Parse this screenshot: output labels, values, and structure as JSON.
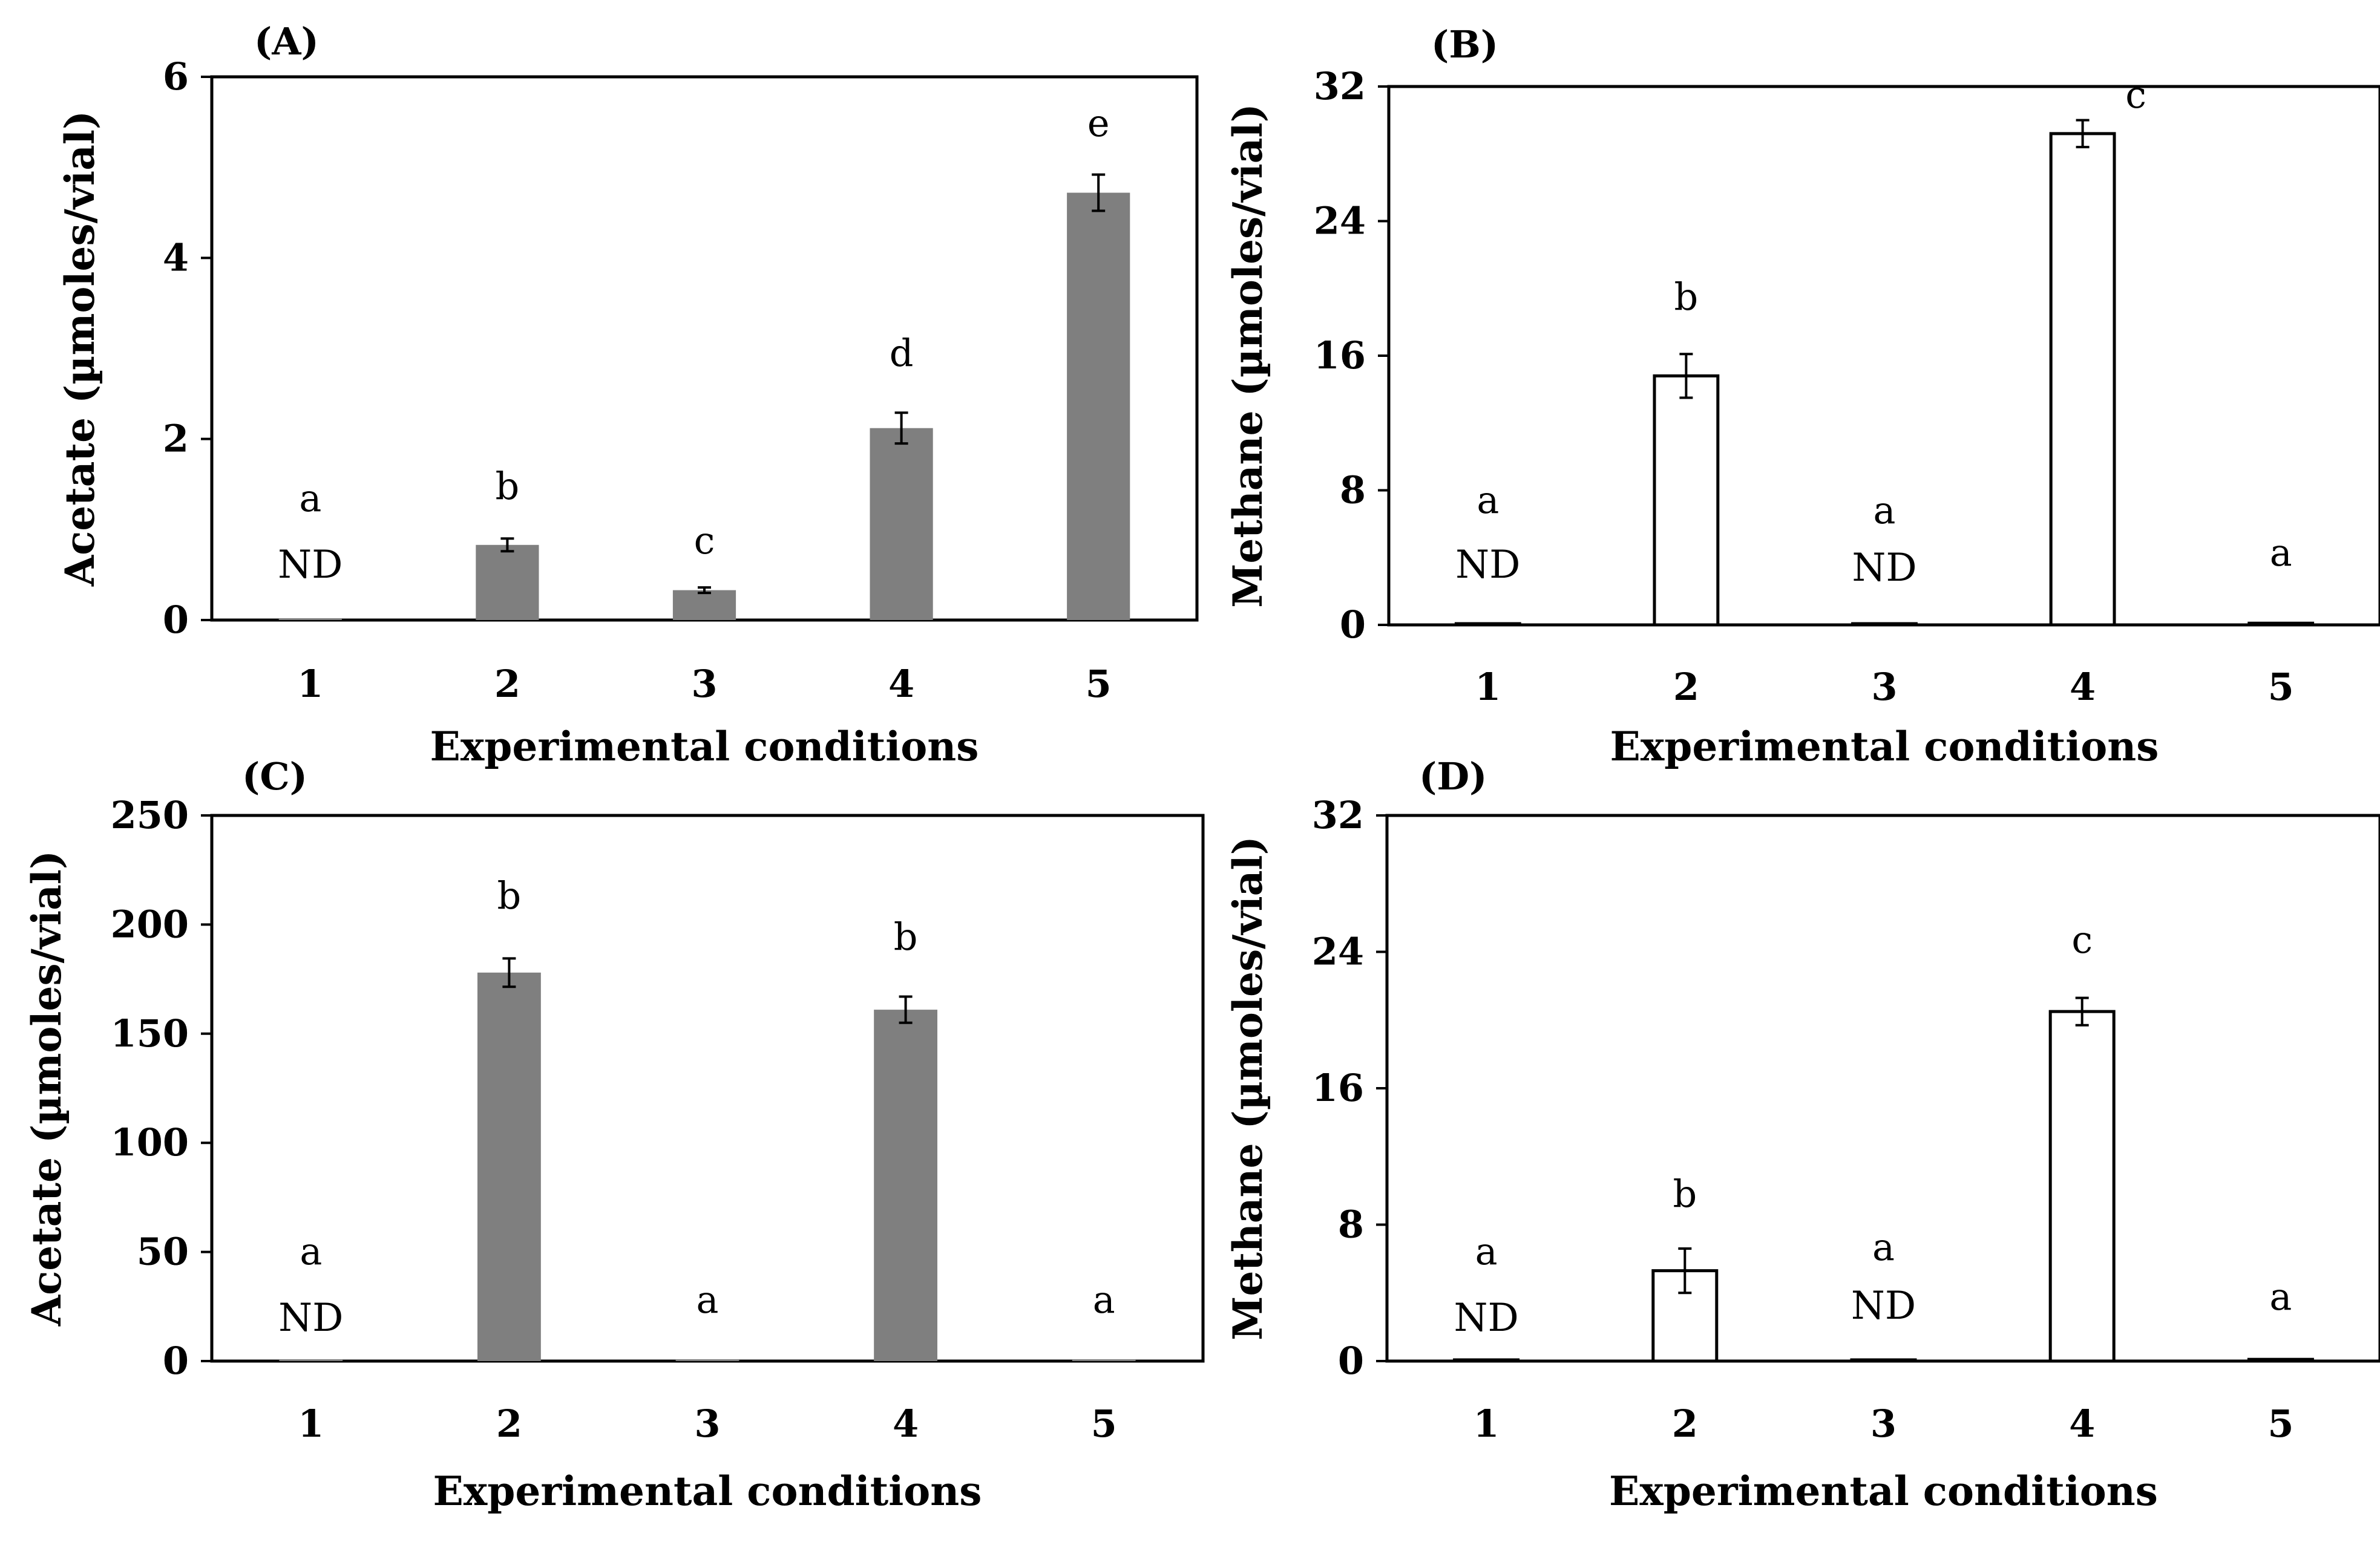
{
  "chart_data": [
    {
      "type": "bar",
      "panel_label": "(A)",
      "title": "",
      "xlabel": "Experimental conditions",
      "ylabel": "Acetate (µmoles/vial)",
      "categories": [
        "1",
        "2",
        "3",
        "4",
        "5"
      ],
      "ylim": [
        0,
        6
      ],
      "yticks": [
        0,
        2,
        4,
        6
      ],
      "grid": false,
      "bar_color": "#7f7f7f",
      "series": [
        {
          "name": "Acetate",
          "values": [
            0,
            0.83,
            0.33,
            2.12,
            4.72
          ],
          "errors": [
            0,
            0.07,
            0.03,
            0.17,
            0.2
          ]
        }
      ],
      "letters": [
        "a",
        "b",
        "c",
        "d",
        "e"
      ],
      "nd": [
        "ND",
        "",
        "",
        "",
        ""
      ]
    },
    {
      "type": "bar",
      "panel_label": "(B)",
      "title": "",
      "xlabel": "Experimental conditions",
      "ylabel": "Methane (µmoles/vial)",
      "categories": [
        "1",
        "2",
        "3",
        "4",
        "5"
      ],
      "ylim": [
        0,
        32
      ],
      "yticks": [
        0,
        8,
        16,
        24,
        32
      ],
      "grid": false,
      "bar_color": "#ffffff",
      "series": [
        {
          "name": "Methane",
          "values": [
            0,
            14.8,
            0,
            29.2,
            0.1
          ],
          "errors": [
            0,
            1.3,
            0,
            0.8,
            0
          ]
        }
      ],
      "letters": [
        "a",
        "b",
        "a",
        "c",
        "a"
      ],
      "nd": [
        "ND",
        "",
        "ND",
        "",
        ""
      ]
    },
    {
      "type": "bar",
      "panel_label": "(C)",
      "title": "",
      "xlabel": "Experimental conditions",
      "ylabel": "Acetate (µmoles/vial)",
      "categories": [
        "1",
        "2",
        "3",
        "4",
        "5"
      ],
      "ylim": [
        0,
        250
      ],
      "yticks": [
        0,
        50,
        100,
        150,
        200,
        250
      ],
      "grid": false,
      "bar_color": "#7f7f7f",
      "series": [
        {
          "name": "Acetate",
          "values": [
            0,
            178,
            0.5,
            161,
            0.5
          ],
          "errors": [
            0,
            6.5,
            0,
            6,
            0
          ]
        }
      ],
      "letters": [
        "a",
        "b",
        "a",
        "b",
        "a"
      ],
      "nd": [
        "ND",
        "",
        "",
        "",
        ""
      ]
    },
    {
      "type": "bar",
      "panel_label": "(D)",
      "title": "",
      "xlabel": "Experimental conditions",
      "ylabel": "Methane (µmoles/vial)",
      "categories": [
        "1",
        "2",
        "3",
        "4",
        "5"
      ],
      "ylim": [
        0,
        32
      ],
      "yticks": [
        0,
        8,
        16,
        24,
        32
      ],
      "grid": false,
      "bar_color": "#ffffff",
      "series": [
        {
          "name": "Methane",
          "values": [
            0,
            5.3,
            0,
            20.5,
            0.1
          ],
          "errors": [
            0,
            1.3,
            0,
            0.8,
            0
          ]
        }
      ],
      "letters": [
        "a",
        "b",
        "a",
        "c",
        "a"
      ],
      "nd": [
        "ND",
        "",
        "ND",
        "",
        ""
      ]
    }
  ]
}
